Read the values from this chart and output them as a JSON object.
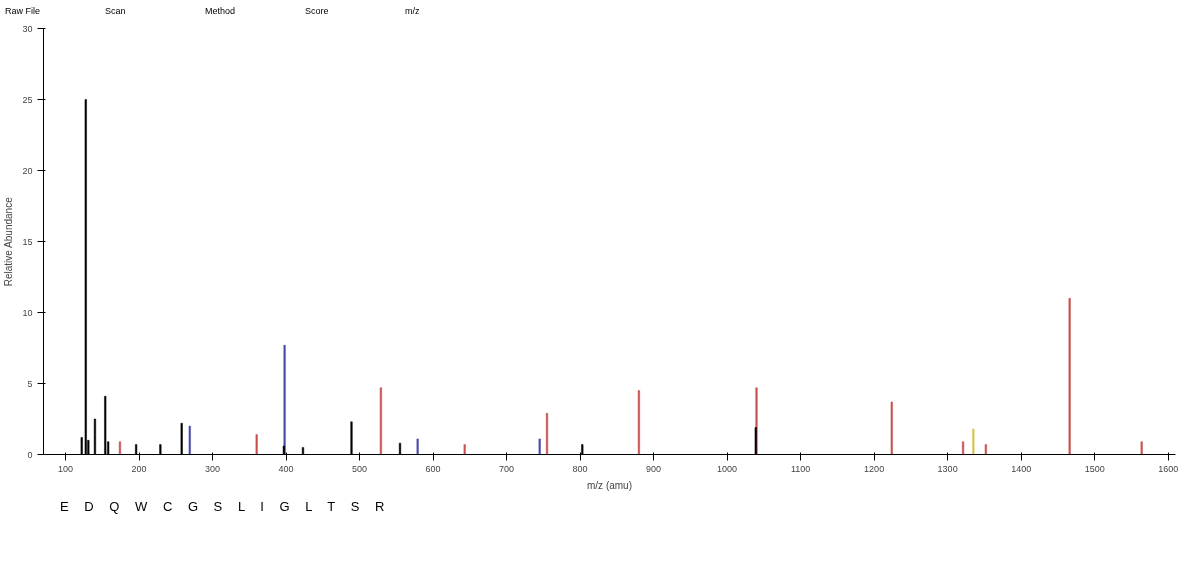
{
  "chart_data": {
    "type": "bar",
    "xlabel": "m/z (amu)",
    "ylabel": "Relative Abundance",
    "xlim": [
      70,
      1610
    ],
    "ylim": [
      0,
      30
    ],
    "xticks": [
      100,
      200,
      300,
      400,
      500,
      600,
      700,
      800,
      900,
      1000,
      1100,
      1200,
      1300,
      1400,
      1500,
      1600
    ],
    "yticks": [
      0,
      5,
      10,
      15,
      20,
      25,
      30
    ],
    "grid": false,
    "series": [
      {
        "color": "#000000",
        "x": [
          122,
          127.5,
          131,
          140,
          154,
          158,
          196,
          229,
          258,
          397,
          423,
          489,
          555,
          803,
          1039
        ],
        "values": [
          1.2,
          25,
          1.0,
          2.5,
          4.1,
          0.9,
          0.7,
          0.7,
          2.2,
          0.6,
          0.5,
          2.3,
          0.8,
          0.7,
          1.9
        ]
      },
      {
        "color": "#c85050",
        "x": [
          174,
          360,
          529,
          643,
          755,
          880,
          1040,
          1224,
          1321,
          1352,
          1466,
          1564
        ],
        "values": [
          0.9,
          1.4,
          4.7,
          0.7,
          2.9,
          4.5,
          4.7,
          3.7,
          0.9,
          0.7,
          11.0,
          0.9
        ]
      },
      {
        "color": "#4a4aa8",
        "x": [
          269,
          398,
          579,
          745
        ],
        "values": [
          2.0,
          7.7,
          1.1,
          1.1
        ]
      },
      {
        "color": "#d4c24a",
        "x": [
          1335
        ],
        "values": [
          1.8
        ]
      }
    ],
    "annotations": [
      "Raw File",
      "Scan",
      "Method",
      "Score",
      "m/z",
      "E D Q W C G S L I G L T S R"
    ]
  }
}
